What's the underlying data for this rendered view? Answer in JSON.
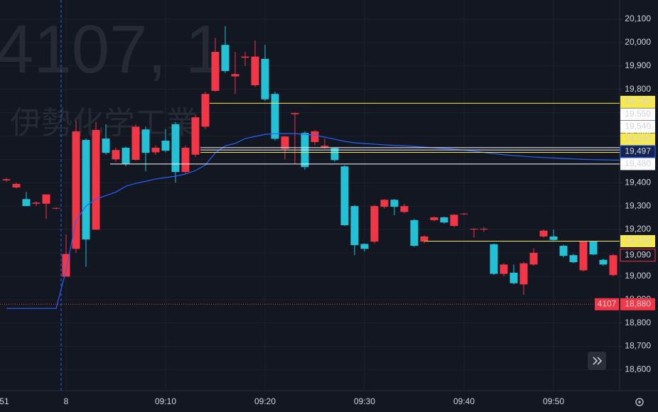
{
  "chart_data": {
    "type": "candlestick",
    "watermark": {
      "symbol": "4107, 1",
      "name": "伊勢化学工業"
    },
    "categories": [
      "08:54",
      "08:55",
      "08:56",
      "08:57",
      "08:58",
      "08:59",
      "09:00",
      "09:01",
      "09:02",
      "09:03",
      "09:04",
      "09:05",
      "09:06",
      "09:07",
      "09:08",
      "09:09",
      "09:10",
      "09:11",
      "09:12",
      "09:13",
      "09:14",
      "09:15",
      "09:16",
      "09:17",
      "09:18",
      "09:19",
      "09:20",
      "09:21",
      "09:22",
      "09:23",
      "09:24",
      "09:25",
      "09:26",
      "09:27",
      "09:28",
      "09:29",
      "09:30",
      "09:31",
      "09:32",
      "09:33",
      "09:34",
      "09:35",
      "09:36",
      "09:37",
      "09:38",
      "09:39",
      "09:40",
      "09:42",
      "09:43",
      "09:44",
      "09:45",
      "09:46",
      "09:47",
      "09:48",
      "09:49",
      "09:50",
      "09:51",
      "09:52",
      "09:53",
      "09:54",
      "09:55",
      "09:56"
    ],
    "open": [
      19410,
      19380,
      19330,
      19310,
      19310,
      19290,
      18998,
      19117,
      19583,
      19199,
      19589,
      19500,
      19550,
      19498,
      19628,
      19530,
      19580,
      19650,
      19446,
      19520,
      19640,
      19793,
      19990,
      19855,
      19935,
      19817,
      19930,
      19780,
      19545,
      19693,
      19613,
      19574,
      19550,
      19548,
      19470,
      19300,
      19138,
      19148,
      19297,
      19327,
      19275,
      19240,
      19148,
      19240,
      19252,
      19215,
      19265,
      19200,
      19200,
      19137,
      19010,
      19015,
      18965,
      19050,
      19170,
      19170,
      19130,
      19090,
      19025,
      19148,
      19070,
      19005
    ],
    "high": [
      19420,
      19400,
      19360,
      19320,
      19350,
      19295,
      19178,
      19665,
      19590,
      19660,
      19650,
      19550,
      19555,
      19650,
      19640,
      19560,
      19630,
      19660,
      19560,
      19690,
      19790,
      20020,
      20070,
      19960,
      19960,
      20010,
      19990,
      19790,
      19600,
      19700,
      19620,
      19625,
      19590,
      19550,
      19475,
      19305,
      19140,
      19305,
      19330,
      19330,
      19310,
      19245,
      19175,
      19255,
      19255,
      19265,
      19270,
      19205,
      19210,
      19140,
      19055,
      19050,
      19060,
      19120,
      19200,
      19200,
      19135,
      19095,
      19150,
      19150,
      19075,
      19095
    ],
    "low": [
      19405,
      19375,
      19300,
      19300,
      19245,
      19285,
      18998,
      19100,
      19040,
      19199,
      19520,
      19490,
      19470,
      19495,
      19450,
      19520,
      19530,
      19400,
      19440,
      19510,
      19630,
      19790,
      19870,
      19780,
      19900,
      19810,
      19750,
      19580,
      19500,
      19480,
      19455,
      19560,
      19545,
      19490,
      19215,
      19090,
      19105,
      19140,
      19290,
      19260,
      19270,
      19125,
      19140,
      19235,
      19225,
      19210,
      19262,
      19165,
      19190,
      19005,
      19000,
      18965,
      18920,
      19045,
      19165,
      19150,
      19080,
      19055,
      19020,
      19090,
      19045,
      19000
    ],
    "close": [
      19415,
      19395,
      19300,
      19315,
      19350,
      19292,
      19095,
      19620,
      19157,
      19626,
      19528,
      19540,
      19482,
      19640,
      19528,
      19550,
      19537,
      19446,
      19550,
      19680,
      19780,
      19960,
      19878,
      19865,
      19940,
      19940,
      19757,
      19588,
      19598,
      19698,
      19467,
      19620,
      19558,
      19497,
      19218,
      19133,
      19117,
      19300,
      19327,
      19297,
      19300,
      19130,
      19170,
      19252,
      19230,
      19263,
      19268,
      19203,
      19203,
      19010,
      19050,
      18970,
      19055,
      19100,
      19195,
      19155,
      19087,
      19060,
      19148,
      19093,
      19050,
      19090
    ],
    "up_color": "#f23645",
    "down_color": "#22c1d6",
    "vwap": {
      "color": "#2962ff",
      "label": "19,497",
      "values": [
        18862,
        18862,
        18862,
        18862,
        18862,
        18862,
        19026,
        19239,
        19300,
        19330,
        19345,
        19360,
        19385,
        19397,
        19406,
        19416,
        19422,
        19428,
        19437,
        19452,
        19476,
        19528,
        19558,
        19568,
        19589,
        19598,
        19607,
        19610,
        19610,
        19610,
        19607,
        19604,
        19595,
        19586,
        19577,
        19571,
        19568,
        19565,
        19562,
        19560,
        19558,
        19555,
        19552,
        19549,
        19546,
        19543,
        19540,
        19535,
        19530,
        19524,
        19520,
        19516,
        19513,
        19510,
        19508,
        19506,
        19504,
        19502,
        19500,
        19499,
        19498,
        19497
      ]
    },
    "ylim": [
      18510,
      20182
    ],
    "yticks": [
      {
        "value": 18600,
        "label": "18,600"
      },
      {
        "value": 18700,
        "label": "18,700"
      },
      {
        "value": 18800,
        "label": "18,800"
      },
      {
        "value": 18900,
        "label": "18,900"
      },
      {
        "value": 19000,
        "label": "19,000"
      },
      {
        "value": 19100,
        "label": "19,100"
      },
      {
        "value": 19200,
        "label": "19,200"
      },
      {
        "value": 19300,
        "label": "19,300"
      },
      {
        "value": 19400,
        "label": "19,400"
      },
      {
        "value": 19500,
        "label": "19,500"
      },
      {
        "value": 19600,
        "label": "19,600"
      },
      {
        "value": 19700,
        "label": "19,700"
      },
      {
        "value": 19800,
        "label": "19,800"
      },
      {
        "value": 19900,
        "label": "19,900"
      },
      {
        "value": 20000,
        "label": "20,000"
      },
      {
        "value": 20100,
        "label": "20,100"
      }
    ],
    "xticks": [
      {
        "value": "08:51",
        "label": "51"
      },
      {
        "value": "09:00",
        "label": "8"
      },
      "09:10",
      "09:20",
      "09:30",
      "09:40",
      "09:50"
    ],
    "grid": true,
    "price_lines": [
      {
        "value": 19740,
        "label": "19,740",
        "color": "#f7e94a"
      },
      {
        "value": 19550,
        "label": "19,550",
        "color": "#ffffff"
      },
      {
        "value": 19540,
        "label": "19,540",
        "color": "#ffffff"
      },
      {
        "value": 19530,
        "label": "19,530",
        "color": "#f7e94a"
      },
      {
        "value": 19480,
        "label": "19,480",
        "color": "#ffffff"
      },
      {
        "value": 19150,
        "label": "19,150",
        "color": "#f7e94a"
      }
    ],
    "last_price": {
      "value": 19090,
      "label": "19,090",
      "color": "#f23645"
    },
    "alert": {
      "value": 18880,
      "label": "18,880",
      "tag": "4107",
      "color": "#f23645"
    }
  }
}
